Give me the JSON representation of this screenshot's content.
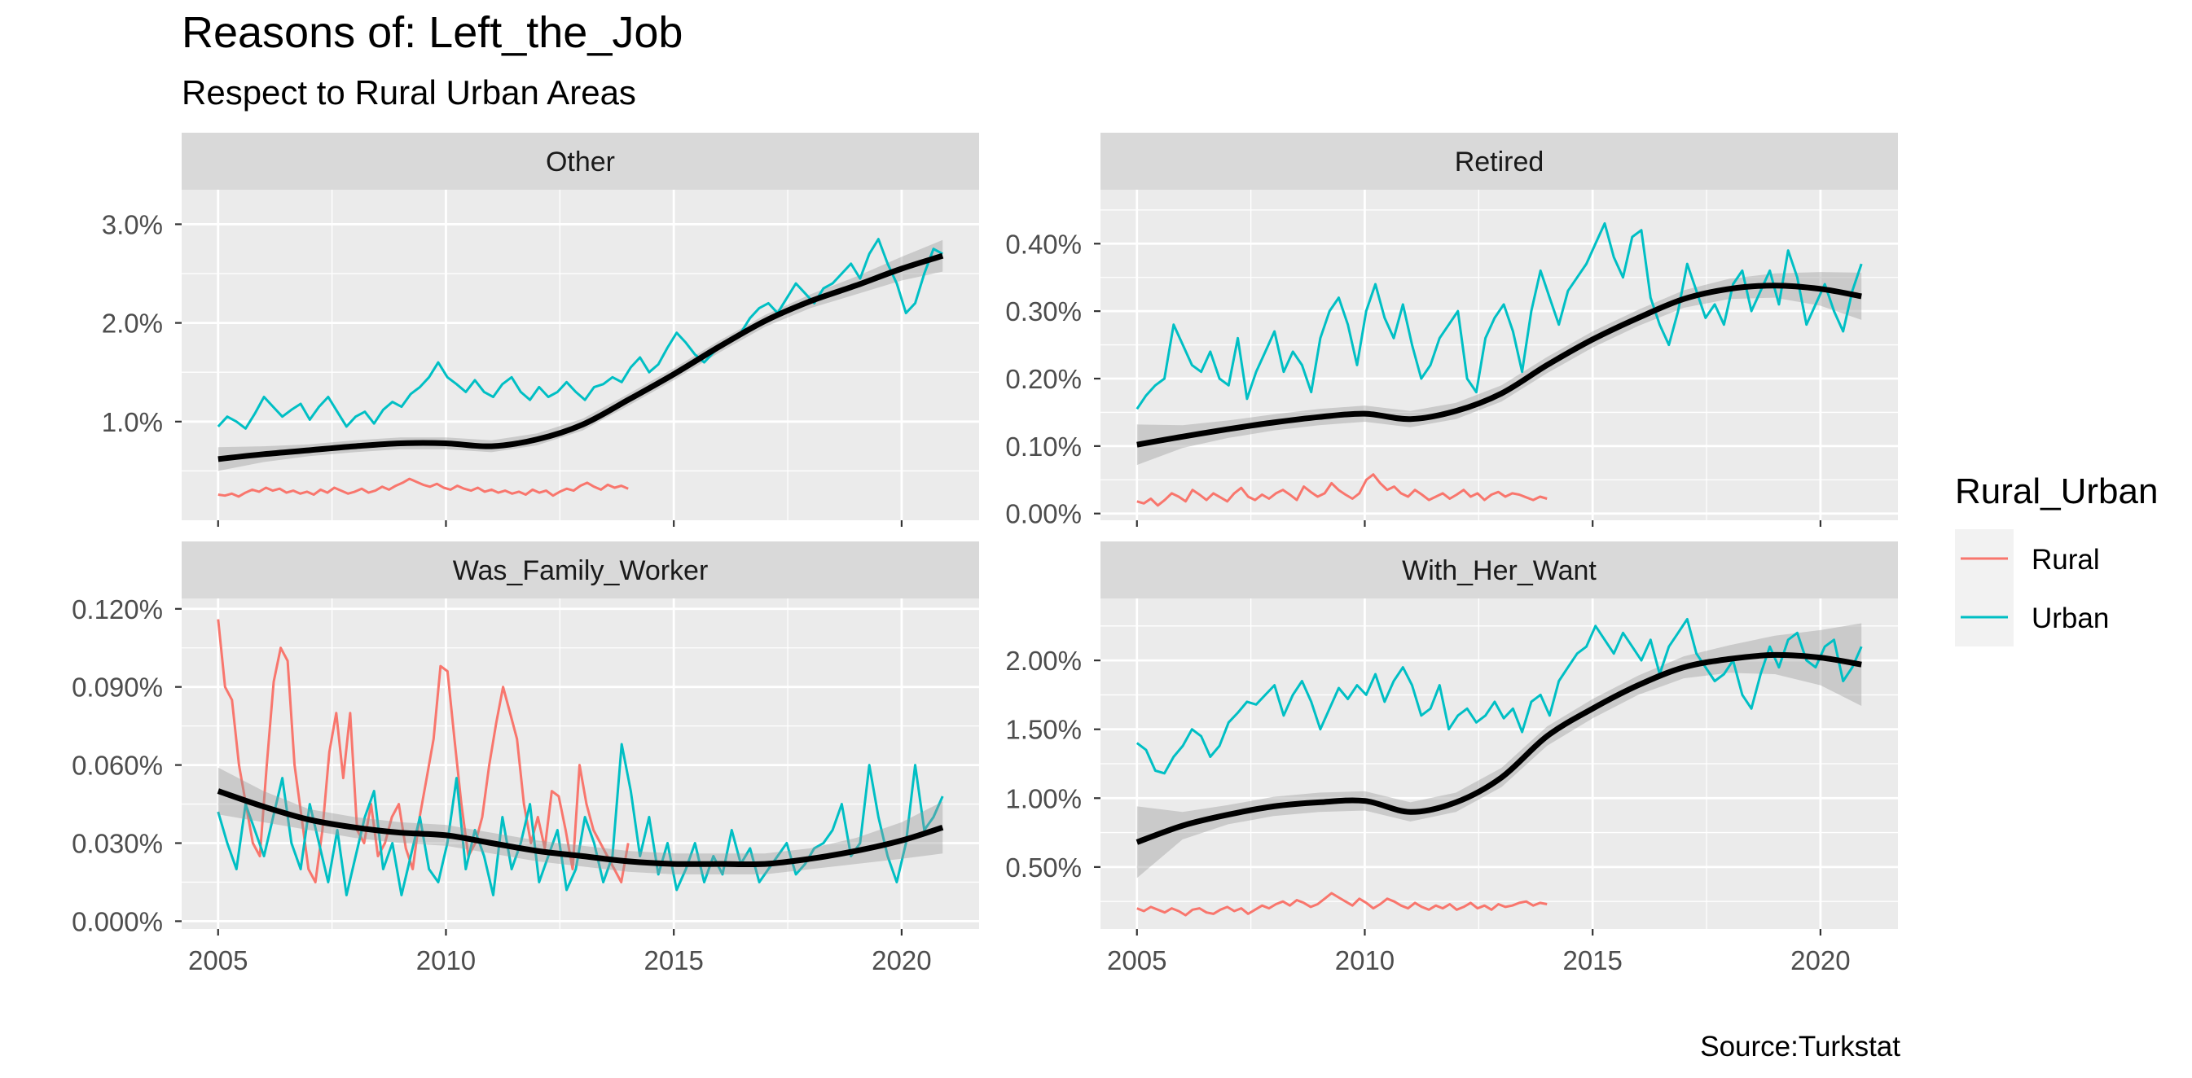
{
  "title": "Reasons of: Left_the_Job",
  "subtitle": "Respect to Rural Urban Areas",
  "caption": "Source:Turkstat",
  "legend": {
    "title": "Rural_Urban",
    "placement": "right",
    "items": [
      {
        "label": "Rural",
        "color": "#F8766D"
      },
      {
        "label": "Urban",
        "color": "#00BFC4"
      }
    ]
  },
  "colors": {
    "panel_bg": "#EBEBEB",
    "strip_bg": "#D9D9D9",
    "grid": "#FFFFFF",
    "smooth": "#000000",
    "ribbon": "#999999"
  },
  "chart_data": {
    "type": "line",
    "facet": "wrap",
    "xlim": [
      2004.2,
      2021.7
    ],
    "x_ticks": [
      2005,
      2010,
      2015,
      2020
    ],
    "x_tick_labels": [
      "2005",
      "2010",
      "2015",
      "2020"
    ],
    "panels": [
      {
        "strip": "Other",
        "ylim": [
          0.0,
          3.35
        ],
        "y_ticks": [
          1.0,
          2.0,
          3.0
        ],
        "y_tick_labels": [
          "1.0%",
          "2.0%",
          "3.0%"
        ],
        "rural": {
          "x_start": 2005.0,
          "x_end": 2014.0,
          "values": [
            0.26,
            0.25,
            0.27,
            0.24,
            0.28,
            0.31,
            0.29,
            0.33,
            0.3,
            0.32,
            0.28,
            0.3,
            0.27,
            0.29,
            0.26,
            0.31,
            0.28,
            0.33,
            0.3,
            0.27,
            0.29,
            0.32,
            0.28,
            0.3,
            0.34,
            0.31,
            0.35,
            0.38,
            0.42,
            0.39,
            0.36,
            0.34,
            0.37,
            0.33,
            0.31,
            0.35,
            0.32,
            0.3,
            0.33,
            0.29,
            0.31,
            0.28,
            0.3,
            0.27,
            0.29,
            0.26,
            0.31,
            0.28,
            0.3,
            0.25,
            0.29,
            0.32,
            0.3,
            0.35,
            0.38,
            0.34,
            0.31,
            0.36,
            0.33,
            0.35,
            0.32
          ]
        },
        "urban": {
          "x_start": 2005.0,
          "x_end": 2020.9,
          "values": [
            0.95,
            1.05,
            1.0,
            0.93,
            1.08,
            1.25,
            1.15,
            1.05,
            1.12,
            1.18,
            1.02,
            1.15,
            1.25,
            1.1,
            0.95,
            1.05,
            1.1,
            0.98,
            1.12,
            1.2,
            1.15,
            1.28,
            1.35,
            1.45,
            1.6,
            1.45,
            1.38,
            1.3,
            1.42,
            1.3,
            1.25,
            1.38,
            1.45,
            1.3,
            1.22,
            1.35,
            1.25,
            1.3,
            1.4,
            1.3,
            1.22,
            1.35,
            1.38,
            1.45,
            1.4,
            1.55,
            1.65,
            1.5,
            1.58,
            1.75,
            1.9,
            1.8,
            1.68,
            1.6,
            1.7,
            1.78,
            1.82,
            1.9,
            2.05,
            2.15,
            2.2,
            2.1,
            2.25,
            2.4,
            2.3,
            2.2,
            2.35,
            2.4,
            2.5,
            2.6,
            2.45,
            2.7,
            2.85,
            2.6,
            2.4,
            2.1,
            2.2,
            2.5,
            2.75,
            2.7
          ]
        },
        "smooth": {
          "x": [
            2005,
            2006,
            2007,
            2008,
            2009,
            2010,
            2011,
            2012,
            2013,
            2014,
            2015,
            2016,
            2017,
            2018,
            2019,
            2020,
            2020.9
          ],
          "y": [
            0.62,
            0.67,
            0.71,
            0.75,
            0.78,
            0.78,
            0.75,
            0.82,
            0.97,
            1.22,
            1.48,
            1.76,
            2.02,
            2.22,
            2.38,
            2.55,
            2.68
          ],
          "se": [
            0.12,
            0.08,
            0.06,
            0.06,
            0.06,
            0.06,
            0.06,
            0.06,
            0.06,
            0.06,
            0.06,
            0.06,
            0.06,
            0.07,
            0.09,
            0.12,
            0.16
          ]
        }
      },
      {
        "strip": "Retired",
        "ylim": [
          -0.01,
          0.48
        ],
        "y_ticks": [
          0.0,
          0.1,
          0.2,
          0.3,
          0.4
        ],
        "y_tick_labels": [
          "0.00%",
          "0.10%",
          "0.20%",
          "0.30%",
          "0.40%"
        ],
        "rural": {
          "x_start": 2005.0,
          "x_end": 2014.0,
          "values": [
            0.018,
            0.015,
            0.022,
            0.012,
            0.02,
            0.03,
            0.025,
            0.018,
            0.035,
            0.028,
            0.02,
            0.03,
            0.024,
            0.018,
            0.03,
            0.038,
            0.025,
            0.02,
            0.028,
            0.022,
            0.03,
            0.035,
            0.028,
            0.02,
            0.04,
            0.032,
            0.025,
            0.03,
            0.045,
            0.035,
            0.028,
            0.022,
            0.03,
            0.05,
            0.058,
            0.045,
            0.035,
            0.04,
            0.03,
            0.025,
            0.035,
            0.028,
            0.02,
            0.025,
            0.03,
            0.022,
            0.028,
            0.035,
            0.025,
            0.03,
            0.02,
            0.028,
            0.032,
            0.025,
            0.03,
            0.028,
            0.024,
            0.02,
            0.025,
            0.022
          ]
        },
        "urban": {
          "x_start": 2005.0,
          "x_end": 2020.9,
          "values": [
            0.155,
            0.175,
            0.19,
            0.2,
            0.28,
            0.25,
            0.22,
            0.21,
            0.24,
            0.2,
            0.19,
            0.26,
            0.17,
            0.21,
            0.24,
            0.27,
            0.21,
            0.24,
            0.22,
            0.18,
            0.26,
            0.3,
            0.32,
            0.28,
            0.22,
            0.3,
            0.34,
            0.29,
            0.26,
            0.31,
            0.25,
            0.2,
            0.22,
            0.26,
            0.28,
            0.3,
            0.2,
            0.18,
            0.26,
            0.29,
            0.31,
            0.27,
            0.21,
            0.3,
            0.36,
            0.32,
            0.28,
            0.33,
            0.35,
            0.37,
            0.4,
            0.43,
            0.38,
            0.35,
            0.41,
            0.42,
            0.32,
            0.28,
            0.25,
            0.3,
            0.37,
            0.33,
            0.29,
            0.31,
            0.28,
            0.34,
            0.36,
            0.3,
            0.33,
            0.36,
            0.31,
            0.39,
            0.35,
            0.28,
            0.31,
            0.34,
            0.3,
            0.27,
            0.33,
            0.37
          ]
        },
        "smooth": {
          "x": [
            2005,
            2006,
            2007,
            2008,
            2009,
            2010,
            2011,
            2012,
            2013,
            2014,
            2015,
            2016,
            2017,
            2018,
            2019,
            2020,
            2020.9
          ],
          "y": [
            0.102,
            0.114,
            0.125,
            0.135,
            0.143,
            0.148,
            0.14,
            0.152,
            0.178,
            0.22,
            0.258,
            0.29,
            0.318,
            0.333,
            0.338,
            0.333,
            0.322
          ],
          "se": [
            0.03,
            0.017,
            0.013,
            0.012,
            0.012,
            0.012,
            0.012,
            0.012,
            0.012,
            0.012,
            0.012,
            0.012,
            0.013,
            0.015,
            0.018,
            0.025,
            0.035
          ]
        }
      },
      {
        "strip": "Was_Family_Worker",
        "ylim": [
          -0.003,
          0.124
        ],
        "y_ticks": [
          0.0,
          0.03,
          0.06,
          0.09,
          0.12
        ],
        "y_tick_labels": [
          "0.000%",
          "0.030%",
          "0.060%",
          "0.090%",
          "0.120%"
        ],
        "rural": {
          "x_start": 2005.0,
          "x_end": 2014.0,
          "values": [
            0.116,
            0.09,
            0.085,
            0.06,
            0.045,
            0.03,
            0.025,
            0.06,
            0.092,
            0.105,
            0.1,
            0.06,
            0.04,
            0.02,
            0.015,
            0.035,
            0.065,
            0.08,
            0.055,
            0.08,
            0.035,
            0.03,
            0.045,
            0.025,
            0.03,
            0.04,
            0.045,
            0.028,
            0.02,
            0.04,
            0.055,
            0.07,
            0.098,
            0.096,
            0.07,
            0.045,
            0.025,
            0.03,
            0.04,
            0.06,
            0.076,
            0.09,
            0.08,
            0.07,
            0.045,
            0.03,
            0.04,
            0.028,
            0.05,
            0.048,
            0.035,
            0.02,
            0.06,
            0.045,
            0.035,
            0.03,
            0.025,
            0.02,
            0.015,
            0.03
          ]
        },
        "urban": {
          "x_start": 2005.0,
          "x_end": 2020.9,
          "values": [
            0.042,
            0.03,
            0.02,
            0.045,
            0.035,
            0.025,
            0.04,
            0.055,
            0.03,
            0.02,
            0.045,
            0.03,
            0.015,
            0.035,
            0.01,
            0.025,
            0.04,
            0.05,
            0.02,
            0.03,
            0.01,
            0.025,
            0.04,
            0.02,
            0.015,
            0.03,
            0.055,
            0.02,
            0.035,
            0.025,
            0.01,
            0.04,
            0.02,
            0.03,
            0.045,
            0.015,
            0.025,
            0.035,
            0.012,
            0.02,
            0.04,
            0.03,
            0.015,
            0.025,
            0.068,
            0.05,
            0.025,
            0.04,
            0.018,
            0.03,
            0.012,
            0.02,
            0.03,
            0.015,
            0.025,
            0.018,
            0.035,
            0.022,
            0.028,
            0.015,
            0.02,
            0.025,
            0.03,
            0.018,
            0.022,
            0.028,
            0.03,
            0.035,
            0.045,
            0.025,
            0.03,
            0.06,
            0.04,
            0.025,
            0.015,
            0.03,
            0.06,
            0.035,
            0.04,
            0.048
          ]
        },
        "smooth": {
          "x": [
            2005,
            2006,
            2007,
            2008,
            2009,
            2010,
            2011,
            2012,
            2013,
            2014,
            2015,
            2016,
            2017,
            2018,
            2019,
            2020,
            2020.9
          ],
          "y": [
            0.05,
            0.044,
            0.039,
            0.036,
            0.034,
            0.033,
            0.03,
            0.027,
            0.025,
            0.023,
            0.022,
            0.022,
            0.022,
            0.024,
            0.027,
            0.031,
            0.036
          ],
          "se": [
            0.009,
            0.006,
            0.004,
            0.004,
            0.004,
            0.004,
            0.004,
            0.004,
            0.004,
            0.004,
            0.004,
            0.004,
            0.004,
            0.004,
            0.005,
            0.007,
            0.01
          ]
        }
      },
      {
        "strip": "With_Her_Want",
        "ylim": [
          0.05,
          2.45
        ],
        "y_ticks": [
          0.5,
          1.0,
          1.5,
          2.0
        ],
        "y_tick_labels": [
          "0.50%",
          "1.00%",
          "1.50%",
          "2.00%"
        ],
        "rural": {
          "x_start": 2005.0,
          "x_end": 2014.0,
          "values": [
            0.2,
            0.18,
            0.21,
            0.19,
            0.17,
            0.2,
            0.18,
            0.15,
            0.19,
            0.2,
            0.17,
            0.16,
            0.19,
            0.21,
            0.18,
            0.2,
            0.16,
            0.19,
            0.22,
            0.2,
            0.23,
            0.25,
            0.22,
            0.26,
            0.24,
            0.21,
            0.23,
            0.27,
            0.31,
            0.28,
            0.25,
            0.22,
            0.27,
            0.24,
            0.2,
            0.23,
            0.27,
            0.25,
            0.22,
            0.2,
            0.24,
            0.21,
            0.19,
            0.22,
            0.2,
            0.23,
            0.19,
            0.21,
            0.24,
            0.2,
            0.22,
            0.19,
            0.23,
            0.21,
            0.22,
            0.24,
            0.25,
            0.22,
            0.24,
            0.23
          ]
        },
        "urban": {
          "x_start": 2005.0,
          "x_end": 2020.9,
          "values": [
            1.4,
            1.35,
            1.2,
            1.18,
            1.3,
            1.38,
            1.5,
            1.45,
            1.3,
            1.38,
            1.55,
            1.62,
            1.7,
            1.68,
            1.75,
            1.82,
            1.6,
            1.75,
            1.85,
            1.7,
            1.5,
            1.65,
            1.8,
            1.72,
            1.82,
            1.75,
            1.9,
            1.7,
            1.85,
            1.95,
            1.82,
            1.6,
            1.65,
            1.82,
            1.5,
            1.6,
            1.65,
            1.55,
            1.6,
            1.7,
            1.58,
            1.65,
            1.48,
            1.7,
            1.75,
            1.6,
            1.85,
            1.95,
            2.05,
            2.1,
            2.25,
            2.15,
            2.05,
            2.2,
            2.1,
            2.0,
            2.15,
            1.9,
            2.1,
            2.2,
            2.3,
            2.05,
            1.95,
            1.85,
            1.9,
            2.0,
            1.75,
            1.65,
            1.9,
            2.1,
            1.95,
            2.15,
            2.2,
            2.0,
            1.95,
            2.1,
            2.15,
            1.85,
            1.95,
            2.1
          ]
        },
        "smooth": {
          "x": [
            2005,
            2006,
            2007,
            2008,
            2009,
            2010,
            2011,
            2012,
            2013,
            2014,
            2015,
            2016,
            2017,
            2018,
            2019,
            2020,
            2020.9
          ],
          "y": [
            0.68,
            0.8,
            0.88,
            0.94,
            0.97,
            0.98,
            0.9,
            0.97,
            1.15,
            1.45,
            1.65,
            1.82,
            1.95,
            2.01,
            2.04,
            2.02,
            1.97
          ],
          "se": [
            0.26,
            0.1,
            0.07,
            0.07,
            0.07,
            0.07,
            0.07,
            0.07,
            0.07,
            0.07,
            0.07,
            0.07,
            0.08,
            0.1,
            0.14,
            0.2,
            0.3
          ]
        }
      }
    ]
  }
}
